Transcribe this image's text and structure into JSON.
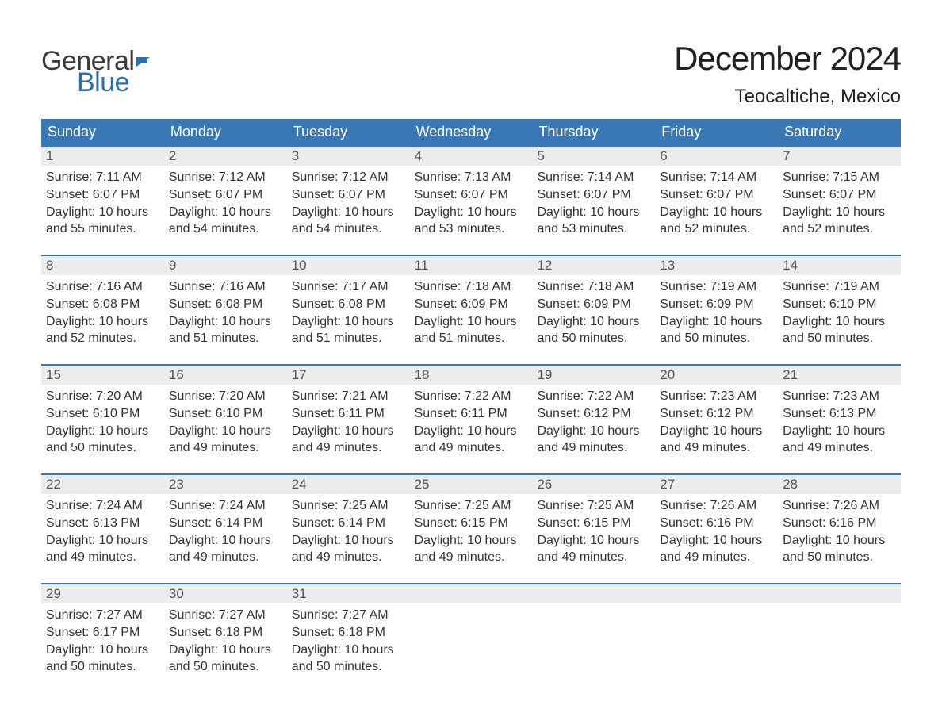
{
  "brand": {
    "word1": "General",
    "word2": "Blue",
    "text_color": "#3b3b3b",
    "accent_color": "#2f6eab"
  },
  "title": "December 2024",
  "location": "Teocaltiche, Mexico",
  "colors": {
    "header_bg": "#3a78b5",
    "header_text": "#ffffff",
    "daynum_bg": "#ececec",
    "daynum_text": "#555555",
    "body_text": "#333333",
    "week_border": "#3a78b5",
    "background": "#ffffff"
  },
  "columns": [
    "Sunday",
    "Monday",
    "Tuesday",
    "Wednesday",
    "Thursday",
    "Friday",
    "Saturday"
  ],
  "weeks": [
    [
      {
        "n": "1",
        "sunrise": "Sunrise: 7:11 AM",
        "sunset": "Sunset: 6:07 PM",
        "d1": "Daylight: 10 hours",
        "d2": "and 55 minutes."
      },
      {
        "n": "2",
        "sunrise": "Sunrise: 7:12 AM",
        "sunset": "Sunset: 6:07 PM",
        "d1": "Daylight: 10 hours",
        "d2": "and 54 minutes."
      },
      {
        "n": "3",
        "sunrise": "Sunrise: 7:12 AM",
        "sunset": "Sunset: 6:07 PM",
        "d1": "Daylight: 10 hours",
        "d2": "and 54 minutes."
      },
      {
        "n": "4",
        "sunrise": "Sunrise: 7:13 AM",
        "sunset": "Sunset: 6:07 PM",
        "d1": "Daylight: 10 hours",
        "d2": "and 53 minutes."
      },
      {
        "n": "5",
        "sunrise": "Sunrise: 7:14 AM",
        "sunset": "Sunset: 6:07 PM",
        "d1": "Daylight: 10 hours",
        "d2": "and 53 minutes."
      },
      {
        "n": "6",
        "sunrise": "Sunrise: 7:14 AM",
        "sunset": "Sunset: 6:07 PM",
        "d1": "Daylight: 10 hours",
        "d2": "and 52 minutes."
      },
      {
        "n": "7",
        "sunrise": "Sunrise: 7:15 AM",
        "sunset": "Sunset: 6:07 PM",
        "d1": "Daylight: 10 hours",
        "d2": "and 52 minutes."
      }
    ],
    [
      {
        "n": "8",
        "sunrise": "Sunrise: 7:16 AM",
        "sunset": "Sunset: 6:08 PM",
        "d1": "Daylight: 10 hours",
        "d2": "and 52 minutes."
      },
      {
        "n": "9",
        "sunrise": "Sunrise: 7:16 AM",
        "sunset": "Sunset: 6:08 PM",
        "d1": "Daylight: 10 hours",
        "d2": "and 51 minutes."
      },
      {
        "n": "10",
        "sunrise": "Sunrise: 7:17 AM",
        "sunset": "Sunset: 6:08 PM",
        "d1": "Daylight: 10 hours",
        "d2": "and 51 minutes."
      },
      {
        "n": "11",
        "sunrise": "Sunrise: 7:18 AM",
        "sunset": "Sunset: 6:09 PM",
        "d1": "Daylight: 10 hours",
        "d2": "and 51 minutes."
      },
      {
        "n": "12",
        "sunrise": "Sunrise: 7:18 AM",
        "sunset": "Sunset: 6:09 PM",
        "d1": "Daylight: 10 hours",
        "d2": "and 50 minutes."
      },
      {
        "n": "13",
        "sunrise": "Sunrise: 7:19 AM",
        "sunset": "Sunset: 6:09 PM",
        "d1": "Daylight: 10 hours",
        "d2": "and 50 minutes."
      },
      {
        "n": "14",
        "sunrise": "Sunrise: 7:19 AM",
        "sunset": "Sunset: 6:10 PM",
        "d1": "Daylight: 10 hours",
        "d2": "and 50 minutes."
      }
    ],
    [
      {
        "n": "15",
        "sunrise": "Sunrise: 7:20 AM",
        "sunset": "Sunset: 6:10 PM",
        "d1": "Daylight: 10 hours",
        "d2": "and 50 minutes."
      },
      {
        "n": "16",
        "sunrise": "Sunrise: 7:20 AM",
        "sunset": "Sunset: 6:10 PM",
        "d1": "Daylight: 10 hours",
        "d2": "and 49 minutes."
      },
      {
        "n": "17",
        "sunrise": "Sunrise: 7:21 AM",
        "sunset": "Sunset: 6:11 PM",
        "d1": "Daylight: 10 hours",
        "d2": "and 49 minutes."
      },
      {
        "n": "18",
        "sunrise": "Sunrise: 7:22 AM",
        "sunset": "Sunset: 6:11 PM",
        "d1": "Daylight: 10 hours",
        "d2": "and 49 minutes."
      },
      {
        "n": "19",
        "sunrise": "Sunrise: 7:22 AM",
        "sunset": "Sunset: 6:12 PM",
        "d1": "Daylight: 10 hours",
        "d2": "and 49 minutes."
      },
      {
        "n": "20",
        "sunrise": "Sunrise: 7:23 AM",
        "sunset": "Sunset: 6:12 PM",
        "d1": "Daylight: 10 hours",
        "d2": "and 49 minutes."
      },
      {
        "n": "21",
        "sunrise": "Sunrise: 7:23 AM",
        "sunset": "Sunset: 6:13 PM",
        "d1": "Daylight: 10 hours",
        "d2": "and 49 minutes."
      }
    ],
    [
      {
        "n": "22",
        "sunrise": "Sunrise: 7:24 AM",
        "sunset": "Sunset: 6:13 PM",
        "d1": "Daylight: 10 hours",
        "d2": "and 49 minutes."
      },
      {
        "n": "23",
        "sunrise": "Sunrise: 7:24 AM",
        "sunset": "Sunset: 6:14 PM",
        "d1": "Daylight: 10 hours",
        "d2": "and 49 minutes."
      },
      {
        "n": "24",
        "sunrise": "Sunrise: 7:25 AM",
        "sunset": "Sunset: 6:14 PM",
        "d1": "Daylight: 10 hours",
        "d2": "and 49 minutes."
      },
      {
        "n": "25",
        "sunrise": "Sunrise: 7:25 AM",
        "sunset": "Sunset: 6:15 PM",
        "d1": "Daylight: 10 hours",
        "d2": "and 49 minutes."
      },
      {
        "n": "26",
        "sunrise": "Sunrise: 7:25 AM",
        "sunset": "Sunset: 6:15 PM",
        "d1": "Daylight: 10 hours",
        "d2": "and 49 minutes."
      },
      {
        "n": "27",
        "sunrise": "Sunrise: 7:26 AM",
        "sunset": "Sunset: 6:16 PM",
        "d1": "Daylight: 10 hours",
        "d2": "and 49 minutes."
      },
      {
        "n": "28",
        "sunrise": "Sunrise: 7:26 AM",
        "sunset": "Sunset: 6:16 PM",
        "d1": "Daylight: 10 hours",
        "d2": "and 50 minutes."
      }
    ],
    [
      {
        "n": "29",
        "sunrise": "Sunrise: 7:27 AM",
        "sunset": "Sunset: 6:17 PM",
        "d1": "Daylight: 10 hours",
        "d2": "and 50 minutes."
      },
      {
        "n": "30",
        "sunrise": "Sunrise: 7:27 AM",
        "sunset": "Sunset: 6:18 PM",
        "d1": "Daylight: 10 hours",
        "d2": "and 50 minutes."
      },
      {
        "n": "31",
        "sunrise": "Sunrise: 7:27 AM",
        "sunset": "Sunset: 6:18 PM",
        "d1": "Daylight: 10 hours",
        "d2": "and 50 minutes."
      },
      {
        "empty": true
      },
      {
        "empty": true
      },
      {
        "empty": true
      },
      {
        "empty": true
      }
    ]
  ]
}
